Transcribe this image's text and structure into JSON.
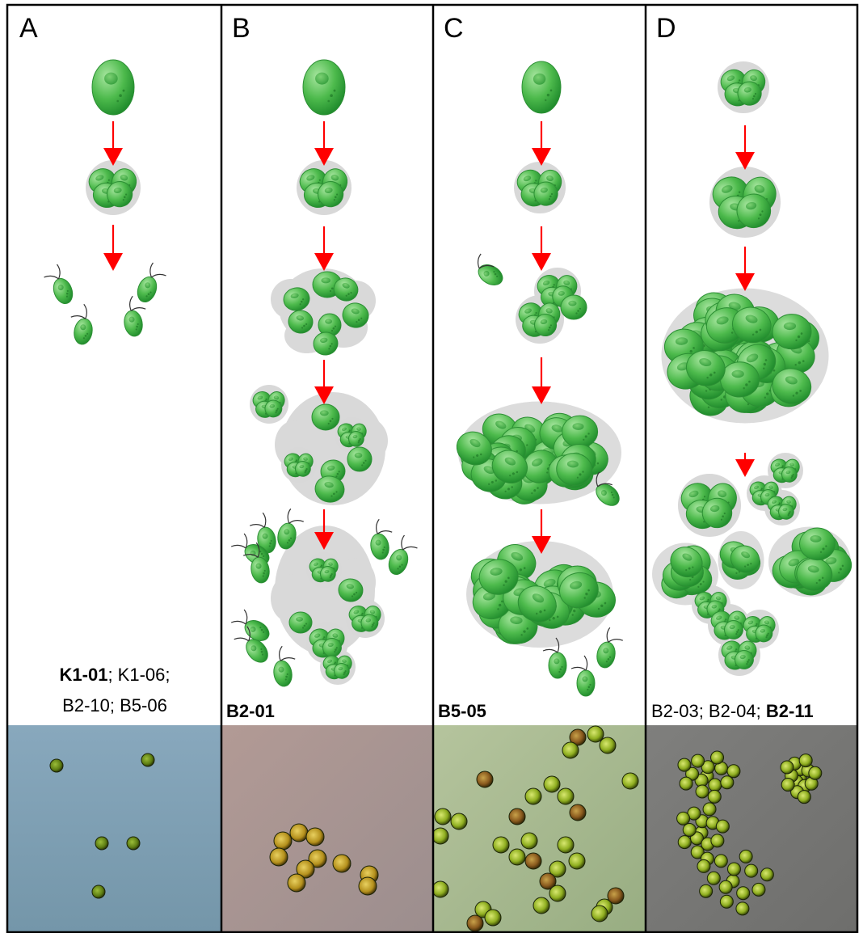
{
  "panels": [
    {
      "letter": "A",
      "strains": [
        [
          {
            "text": "K1-01",
            "bold": true
          },
          {
            "text": "; K1-06;",
            "bold": false
          }
        ],
        [
          {
            "text": "B2-10; B5-06",
            "bold": false
          }
        ]
      ]
    },
    {
      "letter": "B",
      "strains": [
        [
          {
            "text": "B2-01",
            "bold": true
          }
        ]
      ]
    },
    {
      "letter": "C",
      "strains": [
        [
          {
            "text": "B5-05",
            "bold": true
          }
        ]
      ]
    },
    {
      "letter": "D",
      "strains": [
        [
          {
            "text": "B2-03; B2-04; ",
            "bold": false
          },
          {
            "text": "B2-11",
            "bold": true
          }
        ]
      ]
    }
  ],
  "colors": {
    "cell_light": "#9fe29a",
    "cell_mid": "#4fbf4f",
    "cell_dark": "#1f8a2c",
    "matrix": "#d9d9d9",
    "arrow": "#ff0000",
    "border": "#000000",
    "photo_A": "#7fa3b8",
    "photo_B": "#a89590",
    "photo_C": "#a7b88e",
    "photo_D": "#7a7a78"
  }
}
